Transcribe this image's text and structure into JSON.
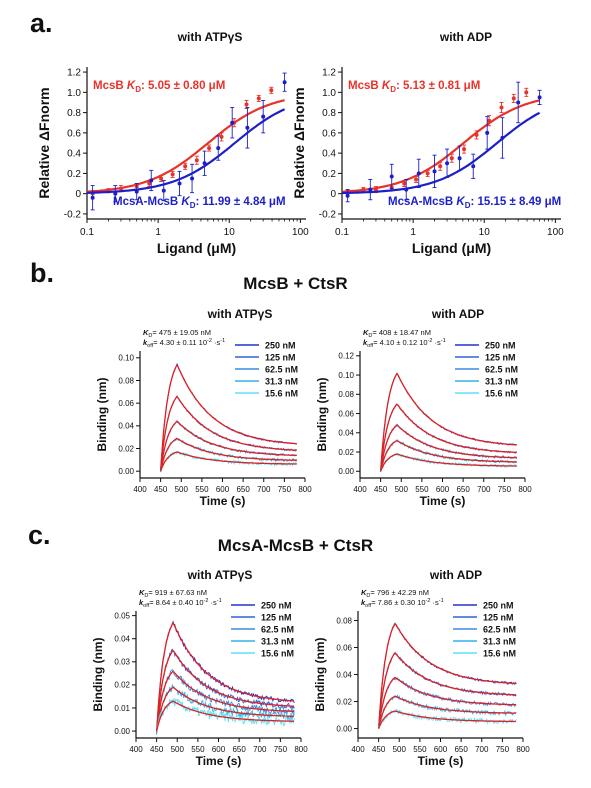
{
  "panels": {
    "a": "a.",
    "b": "b.",
    "c": "c."
  },
  "section_titles": {
    "b": "McsB + CtsR",
    "c": "McsA-McsB + CtsR"
  },
  "colors": {
    "red": "#e8332a",
    "blue": "#1c1fc9",
    "c250": "#2233cc",
    "c125": "#2f63d6",
    "c625": "#3b8be0",
    "c313": "#34b2ea",
    "c156": "#5fe0f5",
    "fit": "#dd2222"
  },
  "chart_data": [
    {
      "id": "a1",
      "type": "scatter",
      "title": "with ATPγS",
      "xlabel": "Ligand (μM)",
      "ylabel": "Relative ΔFnorm",
      "xscale": "log",
      "xlim": [
        0.1,
        120
      ],
      "ylim": [
        -0.25,
        1.25
      ],
      "xticks": [
        0.1,
        1,
        10,
        100
      ],
      "xtick_labels": [
        "0.1",
        "1",
        "10",
        "100"
      ],
      "yticks": [
        -0.2,
        0,
        0.2,
        0.4,
        0.6,
        0.8,
        1.0,
        1.2
      ],
      "ytick_labels": [
        "-0.2",
        "0",
        "0.2",
        "0.4",
        "0.6",
        "0.8",
        "1.0",
        "1.2"
      ],
      "series": [
        {
          "name": "McsB",
          "annotation": "McsB K",
          "sub": "D",
          "kd_text": ": 5.05 ± 0.80 μM",
          "kd": 5.05,
          "color": "#e8332a",
          "x": [
            0.12,
            0.2,
            0.3,
            0.5,
            0.75,
            1.1,
            1.6,
            2.4,
            3.5,
            5.2,
            7.8,
            11.7,
            17.5,
            26,
            39
          ],
          "y": [
            0.01,
            0.03,
            0.05,
            0.08,
            0.1,
            0.15,
            0.19,
            0.27,
            0.33,
            0.45,
            0.56,
            0.7,
            0.88,
            0.94,
            1.02
          ],
          "err": [
            0.02,
            0.02,
            0.03,
            0.02,
            0.03,
            0.03,
            0.03,
            0.03,
            0.04,
            0.03,
            0.04,
            0.04,
            0.04,
            0.03,
            0.03
          ]
        },
        {
          "name": "McsA-McsB",
          "annotation": "McsA-McsB K",
          "sub": "D",
          "kd_text": ": 11.99 ± 4.84 μM",
          "kd": 11.99,
          "color": "#1c1fc9",
          "x": [
            0.12,
            0.25,
            0.5,
            0.8,
            1.2,
            2,
            3,
            4.5,
            7,
            11,
            18,
            30,
            60
          ],
          "y": [
            -0.04,
            0.0,
            0.02,
            0.13,
            0.03,
            0.1,
            0.15,
            0.3,
            0.45,
            0.7,
            0.65,
            0.76,
            1.1
          ],
          "err": [
            0.12,
            0.08,
            0.08,
            0.1,
            0.1,
            0.12,
            0.14,
            0.12,
            0.12,
            0.15,
            0.2,
            0.16,
            0.09
          ]
        }
      ]
    },
    {
      "id": "a2",
      "type": "scatter",
      "title": "with ADP",
      "xlabel": "Ligand (μM)",
      "ylabel": "Relative ΔFnorm",
      "xscale": "log",
      "xlim": [
        0.1,
        120
      ],
      "ylim": [
        -0.25,
        1.25
      ],
      "xticks": [
        0.1,
        1,
        10,
        100
      ],
      "xtick_labels": [
        "0.1",
        "1",
        "10",
        "100"
      ],
      "yticks": [
        -0.2,
        0,
        0.2,
        0.4,
        0.6,
        0.8,
        1.0,
        1.2
      ],
      "ytick_labels": [
        "-0.2",
        "0",
        "0.2",
        "0.4",
        "0.6",
        "0.8",
        "1.0",
        "1.2"
      ],
      "series": [
        {
          "name": "McsB",
          "annotation": "McsB K",
          "sub": "D",
          "kd_text": ": 5.13 ± 0.81 μM",
          "kd": 5.13,
          "color": "#e8332a",
          "x": [
            0.12,
            0.2,
            0.3,
            0.5,
            0.75,
            1.1,
            1.6,
            2.4,
            3.5,
            5.2,
            7.8,
            11.7,
            17.5,
            26,
            39
          ],
          "y": [
            0.02,
            0.04,
            0.04,
            0.06,
            0.1,
            0.14,
            0.2,
            0.27,
            0.35,
            0.44,
            0.58,
            0.72,
            0.85,
            0.94,
            1.0
          ],
          "err": [
            0.02,
            0.02,
            0.03,
            0.03,
            0.03,
            0.03,
            0.03,
            0.04,
            0.04,
            0.04,
            0.04,
            0.05,
            0.05,
            0.04,
            0.04
          ]
        },
        {
          "name": "McsA-McsB",
          "annotation": "McsA-McsB K",
          "sub": "D",
          "kd_text": ": 15.15 ± 8.49 μM",
          "kd": 15.15,
          "color": "#1c1fc9",
          "x": [
            0.12,
            0.25,
            0.5,
            0.8,
            1.2,
            2,
            3,
            4.5,
            7,
            11,
            18,
            30,
            60
          ],
          "y": [
            -0.02,
            0.04,
            0.17,
            0.04,
            0.2,
            0.22,
            0.3,
            0.35,
            0.27,
            0.6,
            0.55,
            0.9,
            0.95
          ],
          "err": [
            0.06,
            0.1,
            0.12,
            0.1,
            0.14,
            0.16,
            0.14,
            0.12,
            0.12,
            0.16,
            0.2,
            0.2,
            0.07
          ]
        }
      ]
    },
    {
      "id": "b1",
      "type": "line",
      "title": "with ATPγS",
      "xlabel": "Time (s)",
      "ylabel": "Binding (nm)",
      "xlim": [
        400,
        800
      ],
      "ylim": [
        -0.006,
        0.106
      ],
      "xticks": [
        400,
        450,
        500,
        550,
        600,
        650,
        700,
        750,
        800
      ],
      "xtick_labels": [
        "400",
        "450",
        "500",
        "550",
        "600",
        "650",
        "700",
        "750",
        "800"
      ],
      "yticks": [
        0,
        0.02,
        0.04,
        0.06,
        0.08,
        0.1
      ],
      "ytick_labels": [
        "0.00",
        "0.02",
        "0.04",
        "0.06",
        "0.08",
        "0.10"
      ],
      "kd_line": {
        "k": "K",
        "sub": "D",
        "rest": "= 475 ± 19.05 nM"
      },
      "koff_line": {
        "k": "k",
        "sub": "off",
        "rest": "= 4.30 ± 0.11 10",
        "exp1": "-2",
        "mid": " ·s",
        "exp2": "-1"
      },
      "x_start": 450,
      "x_switch": 490,
      "x_end": 780,
      "noise": 0.0013,
      "series": [
        {
          "name": "250 nM",
          "color": "#2233cc",
          "peak": 0.094,
          "plateau": 0.022
        },
        {
          "name": "125 nM",
          "color": "#2f63d6",
          "peak": 0.066,
          "plateau": 0.017
        },
        {
          "name": "62.5 nM",
          "color": "#3b8be0",
          "peak": 0.044,
          "plateau": 0.013
        },
        {
          "name": "31.3 nM",
          "color": "#34b2ea",
          "peak": 0.029,
          "plateau": 0.009
        },
        {
          "name": "15.6 nM",
          "color": "#5fe0f5",
          "peak": 0.017,
          "plateau": 0.006
        }
      ]
    },
    {
      "id": "b2",
      "type": "line",
      "title": "with ADP",
      "xlabel": "Time (s)",
      "ylabel": "Binding (nm)",
      "xlim": [
        400,
        800
      ],
      "ylim": [
        -0.007,
        0.125
      ],
      "xticks": [
        400,
        450,
        500,
        550,
        600,
        650,
        700,
        750,
        800
      ],
      "xtick_labels": [
        "400",
        "450",
        "500",
        "550",
        "600",
        "650",
        "700",
        "750",
        "800"
      ],
      "yticks": [
        0,
        0.02,
        0.04,
        0.06,
        0.08,
        0.1,
        0.12
      ],
      "ytick_labels": [
        "0.00",
        "0.02",
        "0.04",
        "0.06",
        "0.08",
        "0.10",
        "0.12"
      ],
      "kd_line": {
        "k": "K",
        "sub": "D",
        "rest": "= 408 ± 18.47 nM"
      },
      "koff_line": {
        "k": "k",
        "sub": "off",
        "rest": "= 4.10 ± 0.12 10",
        "exp1": "-2",
        "mid": " ·s",
        "exp2": "-1"
      },
      "x_start": 450,
      "x_switch": 490,
      "x_end": 780,
      "noise": 0.0015,
      "series": [
        {
          "name": "250 nM",
          "color": "#2233cc",
          "peak": 0.102,
          "plateau": 0.025
        },
        {
          "name": "125 nM",
          "color": "#2f63d6",
          "peak": 0.07,
          "plateau": 0.018
        },
        {
          "name": "62.5 nM",
          "color": "#3b8be0",
          "peak": 0.048,
          "plateau": 0.013
        },
        {
          "name": "31.3 nM",
          "color": "#34b2ea",
          "peak": 0.032,
          "plateau": 0.009
        },
        {
          "name": "15.6 nM",
          "color": "#5fe0f5",
          "peak": 0.018,
          "plateau": 0.005
        }
      ]
    },
    {
      "id": "c1",
      "type": "line",
      "title": "with ATPγS",
      "xlabel": "Time (s)",
      "ylabel": "Binding (nm)",
      "xlim": [
        400,
        800
      ],
      "ylim": [
        -0.003,
        0.052
      ],
      "xticks": [
        400,
        450,
        500,
        550,
        600,
        650,
        700,
        750,
        800
      ],
      "xtick_labels": [
        "400",
        "450",
        "500",
        "550",
        "600",
        "650",
        "700",
        "750",
        "800"
      ],
      "yticks": [
        0,
        0.01,
        0.02,
        0.03,
        0.04,
        0.05
      ],
      "ytick_labels": [
        "0.00",
        "0.01",
        "0.02",
        "0.03",
        "0.04",
        "0.05"
      ],
      "kd_line": {
        "k": "K",
        "sub": "D",
        "rest": "= 919 ± 67.63 nM"
      },
      "koff_line": {
        "k": "k",
        "sub": "off",
        "rest": "= 8.64 ± 0.40 10",
        "exp1": "-2",
        "mid": " ·s",
        "exp2": "-1"
      },
      "x_start": 450,
      "x_switch": 490,
      "x_end": 785,
      "noise": 0.0018,
      "series": [
        {
          "name": "250 nM",
          "color": "#2233cc",
          "peak": 0.047,
          "plateau": 0.012
        },
        {
          "name": "125 nM",
          "color": "#2f63d6",
          "peak": 0.035,
          "plateau": 0.01
        },
        {
          "name": "62.5 nM",
          "color": "#3b8be0",
          "peak": 0.026,
          "plateau": 0.008
        },
        {
          "name": "31.3 nM",
          "color": "#34b2ea",
          "peak": 0.019,
          "plateau": 0.006
        },
        {
          "name": "15.6 nM",
          "color": "#5fe0f5",
          "peak": 0.013,
          "plateau": 0.004
        }
      ]
    },
    {
      "id": "c2",
      "type": "line",
      "title": "with ADP",
      "xlabel": "Time (s)",
      "ylabel": "Binding (nm)",
      "xlim": [
        400,
        800
      ],
      "ylim": [
        -0.007,
        0.087
      ],
      "xticks": [
        400,
        450,
        500,
        550,
        600,
        650,
        700,
        750,
        800
      ],
      "xtick_labels": [
        "400",
        "450",
        "500",
        "550",
        "600",
        "650",
        "700",
        "750",
        "800"
      ],
      "yticks": [
        0,
        0.02,
        0.04,
        0.06,
        0.08
      ],
      "ytick_labels": [
        "0.00",
        "0.02",
        "0.04",
        "0.06",
        "0.08"
      ],
      "kd_line": {
        "k": "K",
        "sub": "D",
        "rest": "= 796 ± 42.29 nM"
      },
      "koff_line": {
        "k": "k",
        "sub": "off",
        "rest": "= 7.86 ± 0.30 10",
        "exp1": "-2",
        "mid": " ·s",
        "exp2": "-1"
      },
      "x_start": 450,
      "x_switch": 490,
      "x_end": 785,
      "noise": 0.0016,
      "series": [
        {
          "name": "250 nM",
          "color": "#2233cc",
          "peak": 0.078,
          "plateau": 0.032
        },
        {
          "name": "125 nM",
          "color": "#2f63d6",
          "peak": 0.056,
          "plateau": 0.024
        },
        {
          "name": "62.5 nM",
          "color": "#3b8be0",
          "peak": 0.038,
          "plateau": 0.017
        },
        {
          "name": "31.3 nM",
          "color": "#34b2ea",
          "peak": 0.024,
          "plateau": 0.011
        },
        {
          "name": "15.6 nM",
          "color": "#5fe0f5",
          "peak": 0.013,
          "plateau": 0.005
        }
      ]
    }
  ]
}
